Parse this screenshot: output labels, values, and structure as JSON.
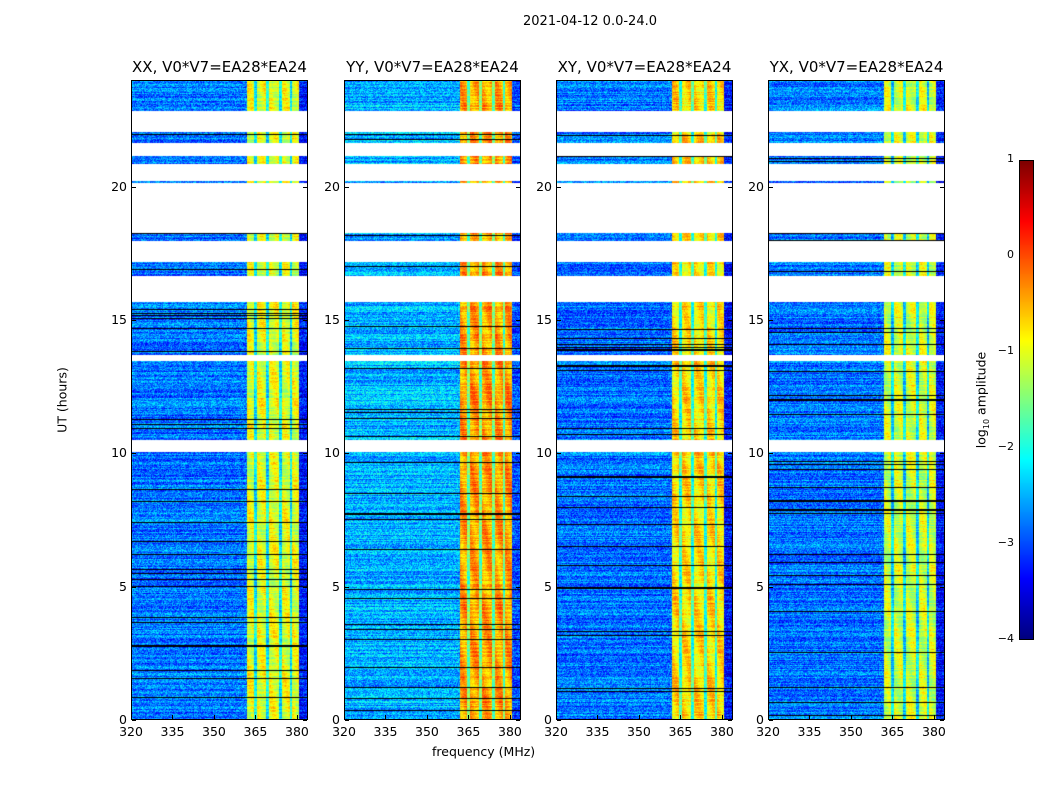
{
  "suptitle": "2021-04-12 0.0-24.0",
  "chart_data": {
    "type": "heatmap",
    "title": "2021-04-12 0.0-24.0",
    "xlabel": "frequency (MHz)",
    "ylabel": "UT (hours)",
    "xlim": [
      320,
      384
    ],
    "ylim": [
      0,
      24
    ],
    "xticks": [
      "320",
      "335",
      "350",
      "365",
      "380"
    ],
    "xtick_values": [
      320,
      335,
      350,
      365,
      380
    ],
    "yticks": [
      "0",
      "5",
      "10",
      "15",
      "20"
    ],
    "ytick_values": [
      0,
      5,
      10,
      15,
      20
    ],
    "colorbar": {
      "label_main": "log",
      "label_sub": "10",
      "label_rest": " amplitude",
      "range": [
        -4,
        1
      ],
      "ticks": [
        "1",
        "0",
        "−1",
        "−2",
        "−3",
        "−4"
      ],
      "tick_values": [
        1,
        0,
        -1,
        -2,
        -3,
        -4
      ],
      "colormap": "jet"
    },
    "flagged_hours": [
      [
        22.1,
        22.9
      ],
      [
        21.2,
        21.7
      ],
      [
        20.25,
        20.9
      ],
      [
        18.3,
        20.2
      ],
      [
        17.2,
        18.0
      ],
      [
        15.7,
        16.7
      ],
      [
        13.5,
        13.7
      ],
      [
        10.05,
        10.5
      ]
    ],
    "rfi_band_mhz": [
      362,
      381
    ],
    "panels": [
      {
        "title": "XX, V0*V7=EA28*EA24",
        "background_level": -2.8,
        "band_level": -1.0
      },
      {
        "title": "YY, V0*V7=EA28*EA24",
        "background_level": -2.5,
        "band_level": -0.4
      },
      {
        "title": "XY, V0*V7=EA28*EA24",
        "background_level": -2.8,
        "band_level": -0.7
      },
      {
        "title": "YX, V0*V7=EA28*EA24",
        "background_level": -2.8,
        "band_level": -1.1
      }
    ]
  }
}
